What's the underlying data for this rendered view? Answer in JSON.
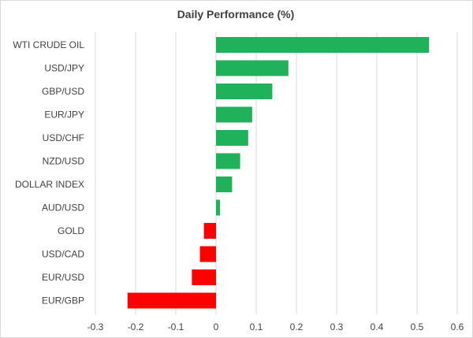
{
  "chart_data": {
    "type": "bar",
    "orientation": "horizontal",
    "title": "Daily Performance (%)",
    "xlabel": "",
    "ylabel": "",
    "categories": [
      "WTI CRUDE OIL",
      "USD/JPY",
      "GBP/USD",
      "EUR/JPY",
      "USD/CHF",
      "NZD/USD",
      "DOLLAR INDEX",
      "AUD/USD",
      "GOLD",
      "USD/CAD",
      "EUR/USD",
      "EUR/GBP"
    ],
    "values": [
      0.53,
      0.18,
      0.14,
      0.09,
      0.08,
      0.06,
      0.04,
      0.01,
      -0.03,
      -0.04,
      -0.06,
      -0.22
    ],
    "xlim": [
      -0.3,
      0.6
    ],
    "xticks": [
      -0.3,
      -0.2,
      -0.1,
      0,
      0.1,
      0.2,
      0.3,
      0.4,
      0.5,
      0.6
    ],
    "xtick_labels": [
      "-0.3",
      "-0.2",
      "-0.1",
      "0",
      "0.1",
      "0.2",
      "0.3",
      "0.4",
      "0.5",
      "0.6"
    ],
    "grid": "vertical",
    "colors": {
      "positive": "#1fb25a",
      "negative": "#ff0000",
      "grid": "#d9d9d9",
      "text": "#404040"
    }
  }
}
